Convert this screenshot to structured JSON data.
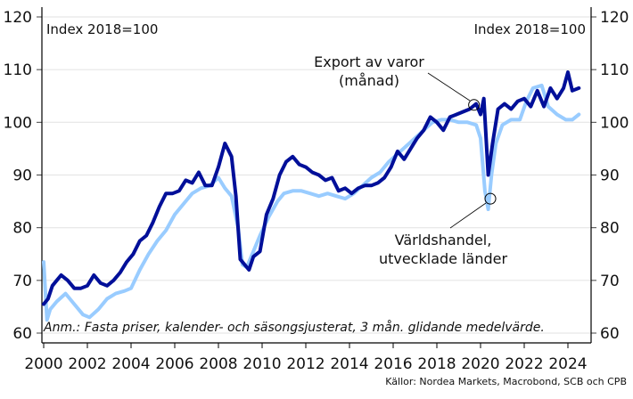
{
  "chart_data": {
    "type": "line",
    "title": "",
    "left_axis_label": "Index 2018=100",
    "right_axis_label": "Index 2018=100",
    "xlabel": "",
    "ylabel": "Index 2018=100",
    "ylim": [
      60,
      120
    ],
    "xlim": [
      2000,
      2025
    ],
    "y_ticks": [
      60,
      70,
      80,
      90,
      100,
      110,
      120
    ],
    "x_ticks": [
      2000,
      2002,
      2004,
      2006,
      2008,
      2010,
      2012,
      2014,
      2016,
      2018,
      2020,
      2022,
      2024
    ],
    "grid": "horizontal",
    "series": [
      {
        "name": "Världshandel, utvecklade länder",
        "color": "#99ccff",
        "x": [
          2000.0,
          2000.15,
          2000.3,
          2000.6,
          2001.0,
          2001.4,
          2001.8,
          2002.1,
          2002.5,
          2002.9,
          2003.3,
          2003.7,
          2004.0,
          2004.4,
          2004.8,
          2005.2,
          2005.6,
          2006.0,
          2006.4,
          2006.8,
          2007.2,
          2007.6,
          2008.0,
          2008.3,
          2008.6,
          2008.9,
          2009.1,
          2009.3,
          2009.6,
          2009.9,
          2010.3,
          2010.7,
          2011.0,
          2011.4,
          2011.8,
          2012.2,
          2012.6,
          2013.0,
          2013.4,
          2013.8,
          2014.2,
          2014.6,
          2015.0,
          2015.4,
          2015.8,
          2016.2,
          2016.6,
          2017.0,
          2017.4,
          2017.8,
          2018.2,
          2018.6,
          2019.0,
          2019.4,
          2019.8,
          2020.0,
          2020.2,
          2020.35,
          2020.5,
          2020.7,
          2021.0,
          2021.4,
          2021.8,
          2022.1,
          2022.4,
          2022.8,
          2023.1,
          2023.5,
          2023.9,
          2024.2,
          2024.5
        ],
        "values": [
          73.5,
          62.5,
          64.5,
          66.0,
          67.5,
          65.5,
          63.5,
          63.0,
          64.5,
          66.5,
          67.5,
          68.0,
          68.5,
          72.0,
          75.0,
          77.5,
          79.5,
          82.5,
          84.5,
          86.5,
          87.5,
          88.0,
          89.5,
          87.5,
          86.0,
          80.0,
          73.0,
          72.5,
          75.5,
          78.5,
          82.0,
          85.0,
          86.5,
          87.0,
          87.0,
          86.5,
          86.0,
          86.5,
          86.0,
          85.5,
          86.5,
          88.0,
          89.5,
          90.5,
          92.5,
          94.0,
          95.5,
          97.0,
          98.5,
          100.0,
          100.5,
          100.5,
          100.0,
          100.0,
          99.5,
          97.0,
          87.0,
          83.5,
          90.0,
          96.0,
          99.5,
          100.5,
          100.5,
          104.0,
          106.5,
          107.0,
          103.0,
          101.5,
          100.5,
          100.5,
          101.5
        ]
      },
      {
        "name": "Export av varor (månad)",
        "color": "#000f99",
        "x": [
          2000.0,
          2000.2,
          2000.4,
          2000.6,
          2000.8,
          2001.1,
          2001.4,
          2001.7,
          2002.0,
          2002.3,
          2002.6,
          2002.9,
          2003.2,
          2003.5,
          2003.8,
          2004.1,
          2004.4,
          2004.7,
          2005.0,
          2005.3,
          2005.6,
          2005.9,
          2006.2,
          2006.5,
          2006.8,
          2007.1,
          2007.4,
          2007.7,
          2008.0,
          2008.3,
          2008.6,
          2008.8,
          2009.0,
          2009.2,
          2009.4,
          2009.6,
          2009.9,
          2010.2,
          2010.5,
          2010.8,
          2011.1,
          2011.4,
          2011.7,
          2012.0,
          2012.3,
          2012.6,
          2012.9,
          2013.2,
          2013.5,
          2013.8,
          2014.1,
          2014.4,
          2014.7,
          2015.0,
          2015.3,
          2015.6,
          2015.9,
          2016.2,
          2016.5,
          2016.8,
          2017.1,
          2017.4,
          2017.7,
          2018.0,
          2018.3,
          2018.6,
          2018.9,
          2019.2,
          2019.5,
          2019.8,
          2020.0,
          2020.15,
          2020.35,
          2020.55,
          2020.8,
          2021.1,
          2021.4,
          2021.7,
          2022.0,
          2022.3,
          2022.6,
          2022.9,
          2023.2,
          2023.5,
          2023.8,
          2024.0,
          2024.2,
          2024.5
        ],
        "values": [
          65.5,
          66.5,
          69.0,
          70.0,
          71.0,
          70.0,
          68.5,
          68.5,
          69.0,
          71.0,
          69.5,
          69.0,
          70.0,
          71.5,
          73.5,
          75.0,
          77.5,
          78.5,
          81.0,
          84.0,
          86.5,
          86.5,
          87.0,
          89.0,
          88.5,
          90.5,
          88.0,
          88.0,
          91.5,
          96.0,
          93.5,
          86.0,
          74.0,
          73.0,
          72.0,
          74.5,
          75.5,
          82.5,
          85.5,
          90.0,
          92.5,
          93.5,
          92.0,
          91.5,
          90.5,
          90.0,
          89.0,
          89.5,
          87.0,
          87.5,
          86.5,
          87.5,
          88.0,
          88.0,
          88.5,
          89.5,
          91.5,
          94.5,
          93.0,
          95.0,
          97.0,
          98.5,
          101.0,
          100.0,
          98.5,
          101.0,
          101.5,
          102.0,
          102.5,
          103.5,
          101.5,
          104.5,
          90.0,
          96.0,
          102.5,
          103.5,
          102.5,
          104.0,
          104.5,
          103.0,
          106.0,
          103.0,
          106.5,
          104.5,
          106.5,
          109.5,
          106.0,
          106.5
        ]
      }
    ],
    "annotations": [
      {
        "text_lines": [
          "Export av varor",
          "(månad)"
        ],
        "target": {
          "x": 2019.7,
          "y": 103.3
        }
      },
      {
        "text_lines": [
          "Världshandel,",
          "utvecklade länder"
        ],
        "target": {
          "x": 2020.45,
          "y": 85.5
        }
      }
    ],
    "note": "Anm.: Fasta priser, kalender- och säsongsjusterat, 3 mån. glidande medelvärde.",
    "source": "Källor: Nordea Markets, Macrobond, SCB och CPB"
  },
  "labels": {
    "left_index": "Index 2018=100",
    "right_index": "Index 2018=100",
    "export_line1": "Export av varor",
    "export_line2": "(månad)",
    "world_line1": "Världshandel,",
    "world_line2": "utvecklade länder",
    "note": "Anm.: Fasta priser, kalender- och säsongsjusterat, 3 mån. glidande medelvärde.",
    "source": "Källor: Nordea Markets, Macrobond, SCB och CPB"
  },
  "colors": {
    "export": "#000f99",
    "world": "#99ccff",
    "grid": "#e6e6e6",
    "axis": "#000000"
  }
}
